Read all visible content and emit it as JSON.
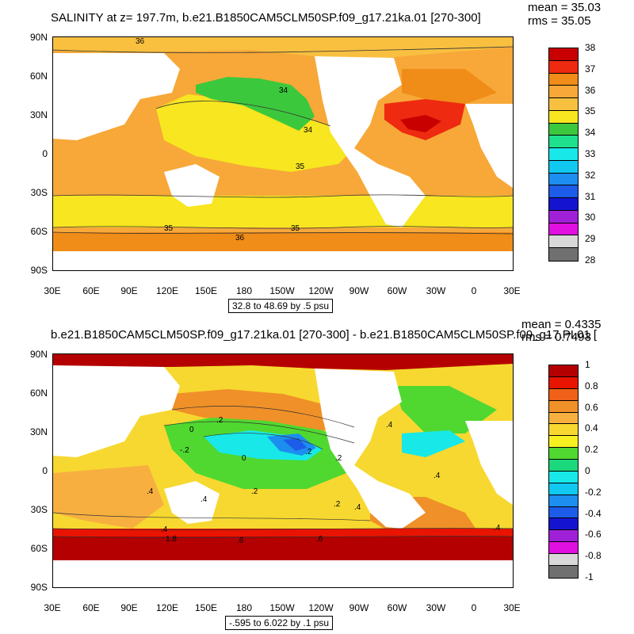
{
  "panel1": {
    "title": "SALINITY at z= 197.7m, b.e21.B1850CAM5CLM50SP.f09_g17.21ka.01 [270-300]",
    "mean": "mean = 35.03",
    "rms": "rms = 35.05",
    "range": "32.8 to 48.69 by .5 psu",
    "lat_labels": [
      "90N",
      "60N",
      "30N",
      "0",
      "30S",
      "60S",
      "90S"
    ],
    "lon_labels": [
      "30E",
      "60E",
      "90E",
      "120E",
      "150E",
      "180",
      "150W",
      "120W",
      "90W",
      "60W",
      "30W",
      "0",
      "30E"
    ],
    "contour_labels": [
      "36",
      "34",
      "34",
      "35",
      "35",
      "35",
      "36"
    ],
    "colorbar": {
      "labels": [
        "38",
        "37",
        "36",
        "35",
        "34",
        "33",
        "32",
        "31",
        "30",
        "29",
        "28"
      ],
      "colors": [
        "#c80000",
        "#ee2a10",
        "#f08c18",
        "#f7a838",
        "#f9c040",
        "#f7e620",
        "#3cc83c",
        "#1fe08c",
        "#18e8e8",
        "#10c8f0",
        "#1c8ef0",
        "#1c5ce8",
        "#1414d0",
        "#a020d8",
        "#e010e0",
        "#d8d8d8",
        "#707070"
      ]
    }
  },
  "panel2": {
    "title": "b.e21.B1850CAM5CLM50SP.f09_g17.21ka.01 [270-300] - b.e21.B1850CAM5CLM50SP.f09_g17.PI.01 [",
    "mean": "mean = 0.4335",
    "rms": "rms = 0.7493",
    "range": "-.595 to 6.022 by .1 psu",
    "lat_labels": [
      "90N",
      "60N",
      "30N",
      "0",
      "30S",
      "60S",
      "90S"
    ],
    "lon_labels": [
      "30E",
      "60E",
      "90E",
      "120E",
      "150E",
      "180",
      "150W",
      "120W",
      "90W",
      "60W",
      "30W",
      "0",
      "30E"
    ],
    "contour_labels": [
      ".2",
      "0",
      "-.2",
      "0",
      ".2",
      ".2",
      ".4",
      ".2",
      ".4",
      ".4",
      ".4",
      ".2",
      ".4",
      "1.8",
      ".6",
      ".6",
      ".4",
      ".4"
    ],
    "colorbar": {
      "labels": [
        "1",
        "0.8",
        "0.6",
        "0.4",
        "0.2",
        "0",
        "-0.2",
        "-0.4",
        "-0.6",
        "-0.8",
        "-1"
      ],
      "colors": [
        "#b40000",
        "#e81400",
        "#f06018",
        "#f09028",
        "#f7b040",
        "#f7d830",
        "#f7f020",
        "#50d830",
        "#1cd87c",
        "#18e8e8",
        "#10c8f0",
        "#1c8ef0",
        "#1c5ce8",
        "#1414d0",
        "#a020d8",
        "#e010e0",
        "#d8d8d8",
        "#707070"
      ]
    }
  }
}
